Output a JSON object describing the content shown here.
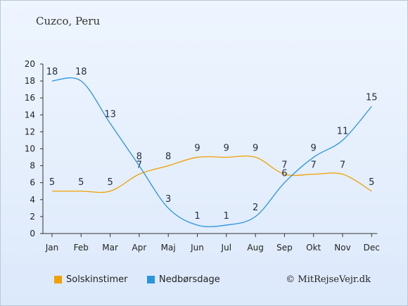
{
  "title": "Cuzco, Peru",
  "credit": "© MitRejseVejr.dk",
  "chart_data": {
    "type": "line",
    "categories": [
      "Jan",
      "Feb",
      "Mar",
      "Apr",
      "Maj",
      "Jun",
      "Jul",
      "Aug",
      "Sep",
      "Okt",
      "Nov",
      "Dec"
    ],
    "ylim": [
      0,
      20
    ],
    "yticks": [
      0,
      2,
      4,
      6,
      8,
      10,
      12,
      14,
      16,
      18,
      20
    ],
    "legend_position": "bottom-left",
    "series": [
      {
        "name": "Solskinstimer",
        "color": "#f0a000",
        "values": [
          5,
          5,
          5,
          7,
          8,
          9,
          9,
          9,
          7,
          7,
          7,
          5
        ]
      },
      {
        "name": "Nedbørsdage",
        "color": "#2a94e0",
        "values": [
          18,
          18,
          13,
          8,
          3,
          1,
          1,
          2,
          6,
          9,
          11,
          15
        ]
      }
    ]
  }
}
